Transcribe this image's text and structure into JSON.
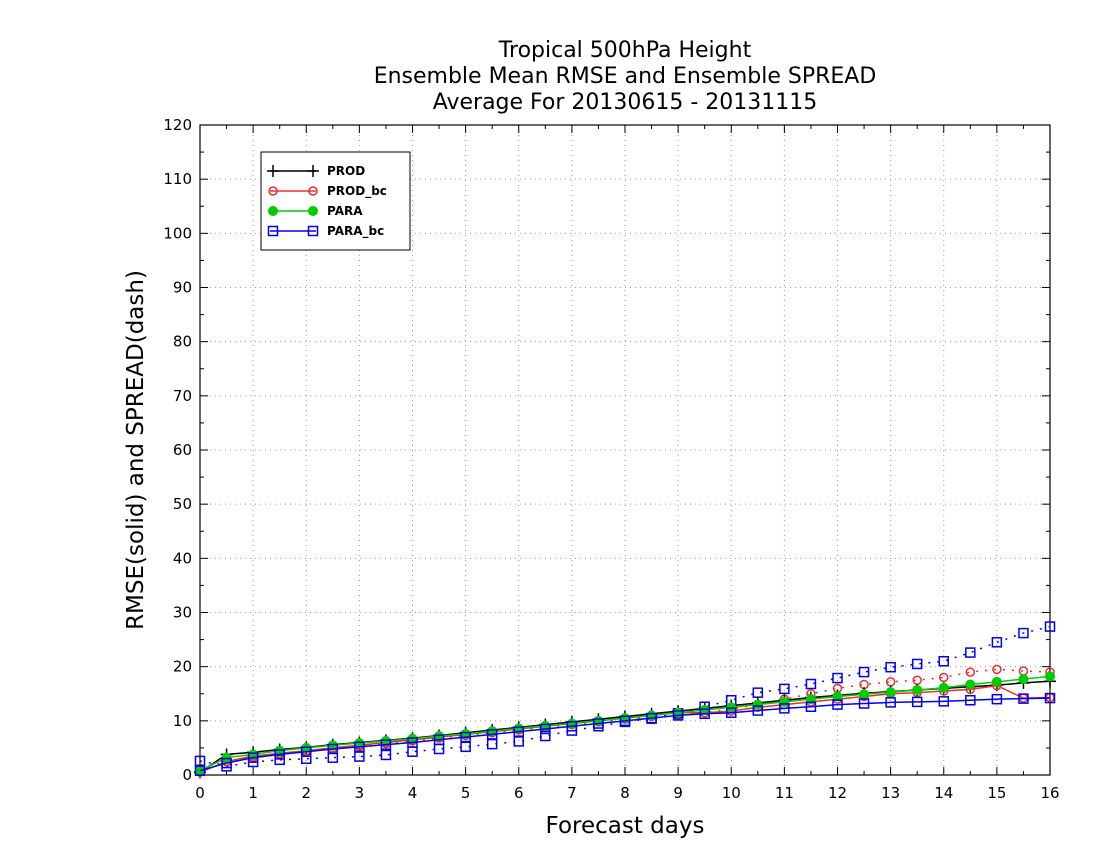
{
  "chart_data": {
    "type": "line",
    "title": [
      "Tropical 500hPa Height",
      "Ensemble Mean RMSE and Ensemble SPREAD",
      "Average For 20130615 - 20131115"
    ],
    "xlabel": "Forecast days",
    "ylabel": "RMSE(solid) and SPREAD(dash)",
    "xlim": [
      0,
      16
    ],
    "ylim": [
      0,
      120
    ],
    "xticks": [
      0,
      1,
      2,
      3,
      4,
      5,
      6,
      7,
      8,
      9,
      10,
      11,
      12,
      13,
      14,
      15,
      16
    ],
    "yticks": [
      0,
      10,
      20,
      30,
      40,
      50,
      60,
      70,
      80,
      90,
      100,
      110,
      120
    ],
    "grid": true,
    "legend_position": "top-left",
    "x": [
      0,
      0.5,
      1,
      1.5,
      2,
      2.5,
      3,
      3.5,
      4,
      4.5,
      5,
      5.5,
      6,
      6.5,
      7,
      7.5,
      8,
      8.5,
      9,
      9.5,
      10,
      10.5,
      11,
      11.5,
      12,
      12.5,
      13,
      13.5,
      14,
      14.5,
      15,
      15.5,
      16
    ],
    "series": [
      {
        "name": "PROD",
        "kind": "rmse",
        "color": "#000000",
        "marker": "plus",
        "values": [
          0.5,
          3.8,
          4.2,
          4.7,
          5.1,
          5.6,
          6.0,
          6.4,
          6.8,
          7.3,
          7.8,
          8.3,
          8.8,
          9.3,
          9.8,
          10.3,
          10.8,
          11.3,
          11.8,
          12.3,
          12.8,
          13.3,
          13.8,
          14.3,
          14.7,
          15.1,
          15.4,
          15.7,
          16.0,
          16.3,
          16.6,
          17.0,
          17.3
        ]
      },
      {
        "name": "PROD_bc",
        "kind": "rmse",
        "color": "#e83030",
        "marker": "circle-open",
        "values": [
          0.5,
          2.5,
          3.5,
          4.0,
          4.5,
          5.0,
          5.5,
          6.0,
          6.5,
          7.0,
          7.5,
          8.0,
          8.5,
          9.0,
          9.5,
          10.0,
          10.5,
          11.0,
          11.5,
          11.5,
          11.8,
          12.5,
          13.0,
          13.5,
          14.0,
          14.5,
          15.0,
          15.2,
          15.5,
          15.8,
          16.5,
          14.2,
          14.3
        ]
      },
      {
        "name": "PROD_bc",
        "kind": "spread",
        "color": "#e83030",
        "marker": "circle-open",
        "values": [
          1.2,
          2.5,
          3.2,
          3.8,
          4.3,
          4.8,
          5.3,
          5.8,
          6.3,
          6.8,
          7.3,
          7.8,
          8.3,
          8.8,
          9.3,
          9.8,
          10.3,
          10.8,
          11.0,
          11.5,
          12.2,
          13.0,
          14.0,
          15.0,
          16.0,
          16.7,
          17.2,
          17.5,
          18.0,
          19.0,
          19.5,
          19.2,
          19.0
        ]
      },
      {
        "name": "PARA",
        "kind": "rmse",
        "color": "#00cc00",
        "marker": "circle-filled",
        "values": [
          0.8,
          3.2,
          3.8,
          4.5,
          5.0,
          5.5,
          5.9,
          6.3,
          6.7,
          7.2,
          7.6,
          8.1,
          8.6,
          9.1,
          9.5,
          10.0,
          10.5,
          11.0,
          11.5,
          12.0,
          12.5,
          13.0,
          13.5,
          14.0,
          14.5,
          14.9,
          15.3,
          15.7,
          16.1,
          16.7,
          17.2,
          17.7,
          18.2
        ]
      },
      {
        "name": "PARA_bc",
        "kind": "rmse",
        "color": "#0000ee",
        "marker": "square-open",
        "values": [
          0.8,
          2.2,
          3.2,
          3.8,
          4.3,
          4.8,
          5.2,
          5.6,
          6.0,
          6.5,
          7.0,
          7.5,
          8.0,
          8.5,
          9.0,
          9.5,
          10.0,
          10.5,
          11.0,
          11.3,
          11.5,
          11.9,
          12.3,
          12.6,
          13.0,
          13.2,
          13.4,
          13.5,
          13.6,
          13.8,
          14.0,
          14.1,
          14.2
        ]
      },
      {
        "name": "PARA_bc",
        "kind": "spread",
        "color": "#0000ee",
        "marker": "square-open",
        "values": [
          2.6,
          1.6,
          2.4,
          2.8,
          3.0,
          3.2,
          3.4,
          3.7,
          4.3,
          4.8,
          5.2,
          5.7,
          6.2,
          7.2,
          8.2,
          9.0,
          9.8,
          10.4,
          11.4,
          12.6,
          13.8,
          15.2,
          15.9,
          16.8,
          17.9,
          19.0,
          19.9,
          20.5,
          21.0,
          22.6,
          24.5,
          26.2,
          27.4
        ]
      }
    ]
  }
}
